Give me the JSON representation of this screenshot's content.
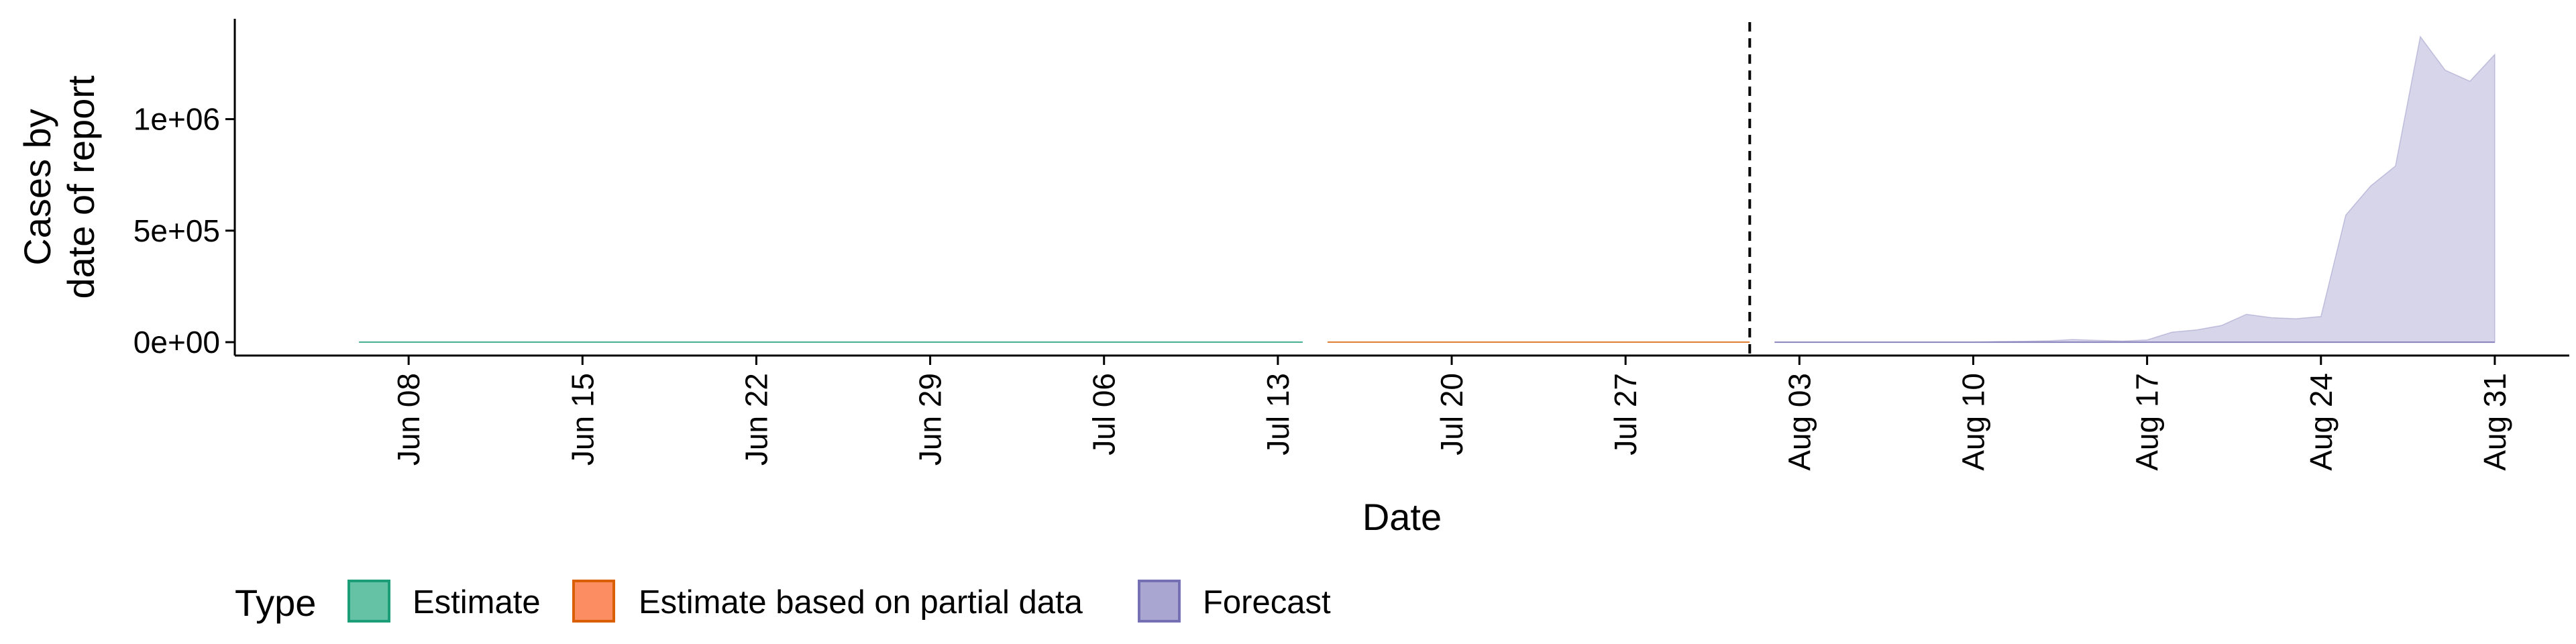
{
  "chart_data": {
    "type": "area",
    "xlabel": "Date",
    "ylabel_lines": [
      "Cases by",
      "date of report"
    ],
    "x_range": [
      "2020-06-01",
      "2020-09-03"
    ],
    "y_range": [
      -60000,
      1450000
    ],
    "x_ticks": [
      {
        "date": "2020-06-08",
        "label": "Jun 08"
      },
      {
        "date": "2020-06-15",
        "label": "Jun 15"
      },
      {
        "date": "2020-06-22",
        "label": "Jun 22"
      },
      {
        "date": "2020-06-29",
        "label": "Jun 29"
      },
      {
        "date": "2020-07-06",
        "label": "Jul 06"
      },
      {
        "date": "2020-07-13",
        "label": "Jul 13"
      },
      {
        "date": "2020-07-20",
        "label": "Jul 20"
      },
      {
        "date": "2020-07-27",
        "label": "Jul 27"
      },
      {
        "date": "2020-08-03",
        "label": "Aug 03"
      },
      {
        "date": "2020-08-10",
        "label": "Aug 10"
      },
      {
        "date": "2020-08-17",
        "label": "Aug 17"
      },
      {
        "date": "2020-08-24",
        "label": "Aug 24"
      },
      {
        "date": "2020-08-31",
        "label": "Aug 31"
      }
    ],
    "y_ticks": [
      {
        "value": 0,
        "label": "0e+00"
      },
      {
        "value": 500000,
        "label": "5e+05"
      },
      {
        "value": 1000000,
        "label": "1e+06"
      }
    ],
    "vline_date": "2020-08-01",
    "series": [
      {
        "name": "Estimate",
        "color": "#1b9e77",
        "fill": "#66c2a5",
        "segments": [
          {
            "start": "2020-06-06",
            "end": "2020-07-14",
            "lower": 0,
            "upper": 0
          }
        ]
      },
      {
        "name": "Estimate based on partial data",
        "color": "#d95f02",
        "fill": "#fc8d62",
        "segments": [
          {
            "start": "2020-07-15",
            "end": "2020-08-01",
            "lower": 0,
            "upper": 0
          }
        ]
      },
      {
        "name": "Forecast",
        "color": "#7570b3",
        "fill": "#d6d5e9",
        "points": [
          {
            "date": "2020-08-02",
            "lower": 0,
            "upper": 0
          },
          {
            "date": "2020-08-03",
            "lower": 0,
            "upper": 0
          },
          {
            "date": "2020-08-04",
            "lower": 0,
            "upper": 0
          },
          {
            "date": "2020-08-05",
            "lower": 0,
            "upper": 0
          },
          {
            "date": "2020-08-06",
            "lower": 0,
            "upper": 0
          },
          {
            "date": "2020-08-07",
            "lower": 0,
            "upper": 0
          },
          {
            "date": "2020-08-08",
            "lower": 0,
            "upper": 0
          },
          {
            "date": "2020-08-09",
            "lower": 0,
            "upper": 0
          },
          {
            "date": "2020-08-10",
            "lower": 0,
            "upper": 0
          },
          {
            "date": "2020-08-11",
            "lower": 0,
            "upper": 3000
          },
          {
            "date": "2020-08-12",
            "lower": 0,
            "upper": 4000
          },
          {
            "date": "2020-08-13",
            "lower": 0,
            "upper": 6000
          },
          {
            "date": "2020-08-14",
            "lower": 0,
            "upper": 12000
          },
          {
            "date": "2020-08-15",
            "lower": 0,
            "upper": 8000
          },
          {
            "date": "2020-08-16",
            "lower": 0,
            "upper": 5000
          },
          {
            "date": "2020-08-17",
            "lower": 0,
            "upper": 10000
          },
          {
            "date": "2020-08-18",
            "lower": 0,
            "upper": 45000
          },
          {
            "date": "2020-08-19",
            "lower": 0,
            "upper": 55000
          },
          {
            "date": "2020-08-20",
            "lower": 0,
            "upper": 75000
          },
          {
            "date": "2020-08-21",
            "lower": 0,
            "upper": 125000
          },
          {
            "date": "2020-08-22",
            "lower": 0,
            "upper": 110000
          },
          {
            "date": "2020-08-23",
            "lower": 0,
            "upper": 105000
          },
          {
            "date": "2020-08-24",
            "lower": 0,
            "upper": 115000
          },
          {
            "date": "2020-08-25",
            "lower": 0,
            "upper": 570000
          },
          {
            "date": "2020-08-26",
            "lower": 0,
            "upper": 700000
          },
          {
            "date": "2020-08-27",
            "lower": 0,
            "upper": 790000
          },
          {
            "date": "2020-08-28",
            "lower": 0,
            "upper": 1370000
          },
          {
            "date": "2020-08-29",
            "lower": 0,
            "upper": 1220000
          },
          {
            "date": "2020-08-30",
            "lower": 0,
            "upper": 1170000
          },
          {
            "date": "2020-08-31",
            "lower": 0,
            "upper": 1290000
          }
        ]
      }
    ],
    "legend": {
      "title": "Type",
      "position": "bottom",
      "items": [
        {
          "label": "Estimate",
          "fill": "#66c2a5",
          "border": "#1b9e77"
        },
        {
          "label": "Estimate based on partial data",
          "fill": "#fc8d62",
          "border": "#d95f02"
        },
        {
          "label": "Forecast",
          "fill": "#a9a6d1",
          "border": "#7570b3"
        }
      ]
    },
    "grid": false
  }
}
